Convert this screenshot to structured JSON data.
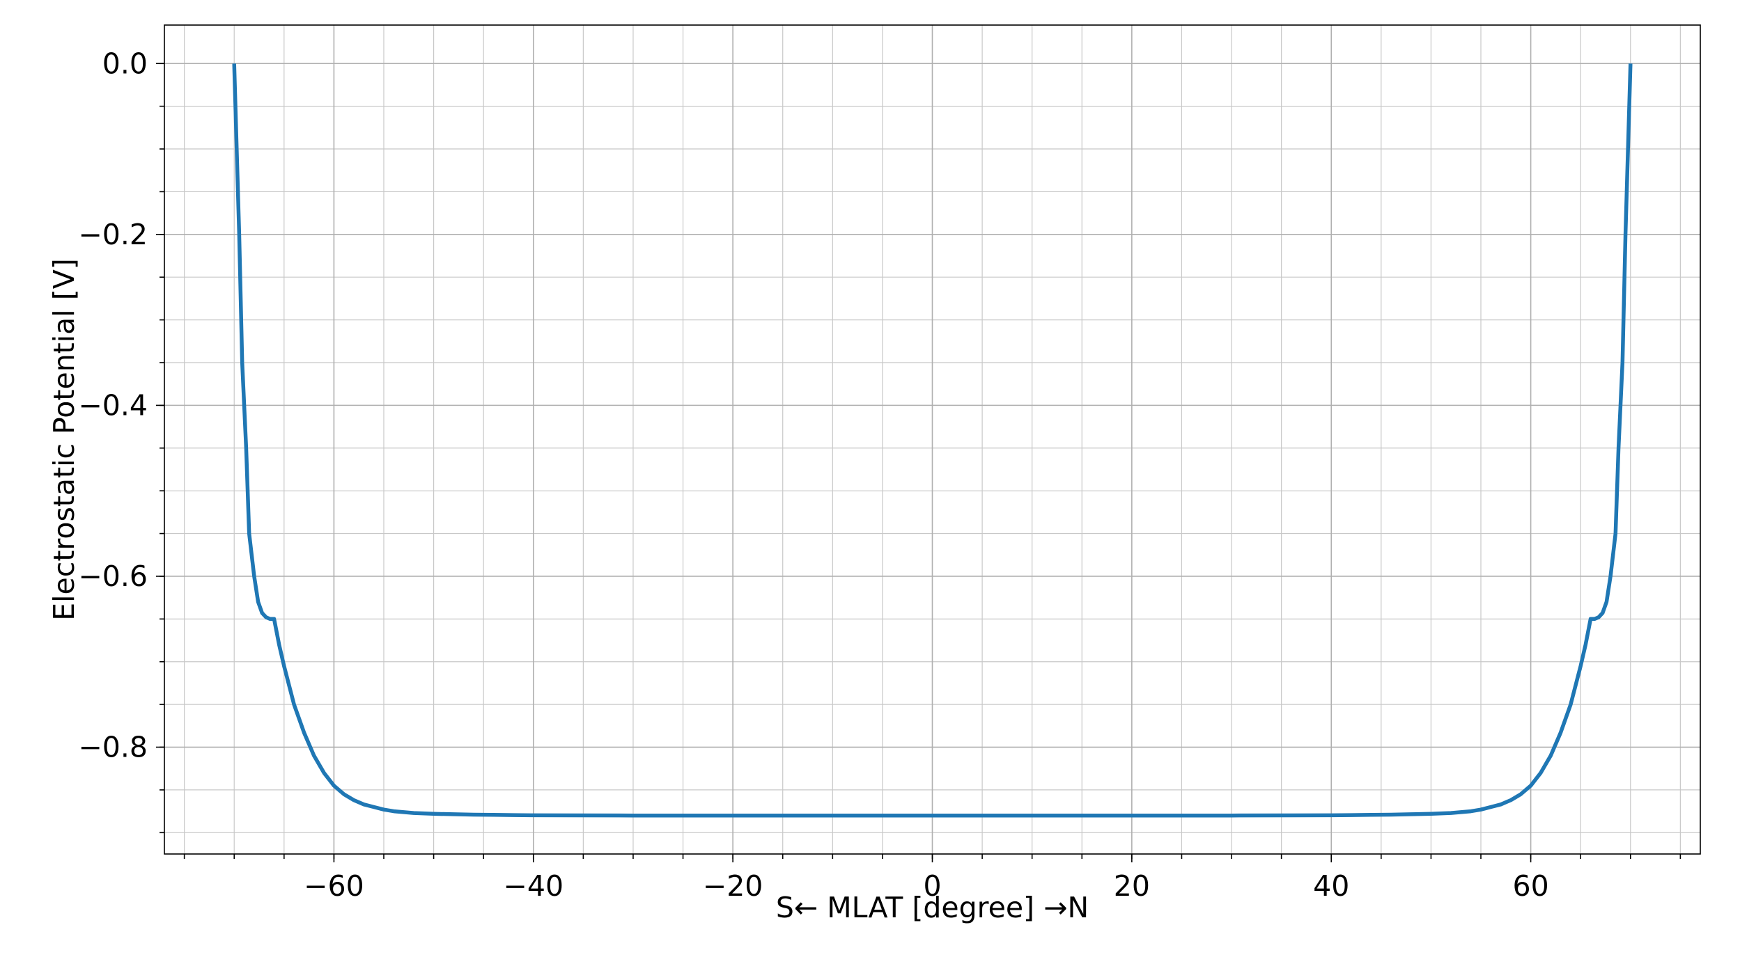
{
  "chart_data": {
    "type": "line",
    "title": "",
    "xlabel": "S← MLAT [degree] →N",
    "ylabel": "Electrostatic Potential [V]",
    "xlim": [
      -77,
      77
    ],
    "ylim": [
      -0.925,
      0.045
    ],
    "x_major_ticks": [
      -60,
      -40,
      -20,
      0,
      20,
      40,
      60
    ],
    "x_tick_labels": [
      "−60",
      "−40",
      "−20",
      "0",
      "20",
      "40",
      "60"
    ],
    "x_minor_step": 5,
    "y_major_ticks": [
      0.0,
      -0.2,
      -0.4,
      -0.6,
      -0.8
    ],
    "y_tick_labels": [
      "0.0",
      "−0.2",
      "−0.4",
      "−0.6",
      "−0.8"
    ],
    "y_minor_step": 0.05,
    "grid": "major and minor",
    "legend": "none",
    "series": [
      {
        "color": "#1f77b4",
        "x": [
          -70.0,
          -69.5,
          -69.2,
          -68.8,
          -68.5,
          -68.0,
          -67.6,
          -67.2,
          -66.8,
          -66.4,
          -66.0,
          -65.5,
          -65.0,
          -64.0,
          -63.0,
          -62.0,
          -61.0,
          -60.0,
          -59.0,
          -58.0,
          -57.0,
          -56.0,
          -55.0,
          -54.0,
          -52.0,
          -50.0,
          -48.0,
          -46.0,
          -44.0,
          -42.0,
          -40.0,
          -36.0,
          -30.0,
          -20.0,
          -10.0,
          0.0,
          10.0,
          20.0,
          30.0,
          36.0,
          40.0,
          42.0,
          44.0,
          46.0,
          48.0,
          50.0,
          52.0,
          54.0,
          55.0,
          56.0,
          57.0,
          58.0,
          59.0,
          60.0,
          61.0,
          62.0,
          63.0,
          64.0,
          65.0,
          65.5,
          66.0,
          66.4,
          66.8,
          67.2,
          67.6,
          68.0,
          68.5,
          68.8,
          69.2,
          69.5,
          70.0
        ],
        "y": [
          0.0,
          -0.2,
          -0.35,
          -0.45,
          -0.55,
          -0.6,
          -0.63,
          -0.643,
          -0.648,
          -0.65,
          -0.65,
          -0.68,
          -0.705,
          -0.75,
          -0.783,
          -0.81,
          -0.83,
          -0.845,
          -0.855,
          -0.862,
          -0.867,
          -0.87,
          -0.873,
          -0.875,
          -0.877,
          -0.878,
          -0.8785,
          -0.879,
          -0.8792,
          -0.8795,
          -0.8797,
          -0.8798,
          -0.88,
          -0.88,
          -0.88,
          -0.88,
          -0.88,
          -0.88,
          -0.88,
          -0.8798,
          -0.8797,
          -0.8795,
          -0.8792,
          -0.879,
          -0.8785,
          -0.878,
          -0.877,
          -0.875,
          -0.873,
          -0.87,
          -0.867,
          -0.862,
          -0.855,
          -0.845,
          -0.83,
          -0.81,
          -0.783,
          -0.75,
          -0.705,
          -0.68,
          -0.65,
          -0.65,
          -0.648,
          -0.643,
          -0.63,
          -0.6,
          -0.55,
          -0.45,
          -0.35,
          -0.2,
          0.0
        ]
      }
    ]
  }
}
